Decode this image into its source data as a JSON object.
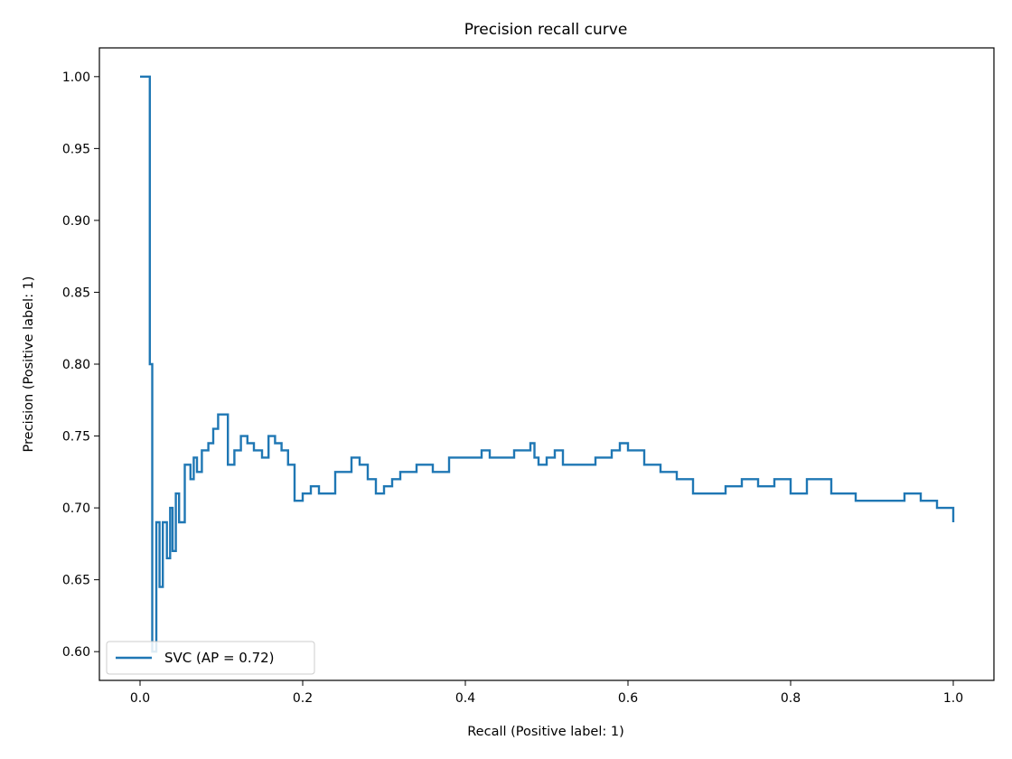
{
  "chart_data": {
    "type": "line",
    "title": "Precision recall curve",
    "xlabel": "Recall (Positive label: 1)",
    "ylabel": "Precision (Positive label: 1)",
    "xlim": [
      -0.05,
      1.05
    ],
    "ylim": [
      0.58,
      1.02
    ],
    "xticks": [
      0.0,
      0.2,
      0.4,
      0.6,
      0.8,
      1.0
    ],
    "xtick_labels": [
      "0.0",
      "0.2",
      "0.4",
      "0.6",
      "0.8",
      "1.0"
    ],
    "yticks": [
      0.6,
      0.65,
      0.7,
      0.75,
      0.8,
      0.85,
      0.9,
      0.95,
      1.0
    ],
    "ytick_labels": [
      "0.60",
      "0.65",
      "0.70",
      "0.75",
      "0.80",
      "0.85",
      "0.90",
      "0.95",
      "1.00"
    ],
    "grid": false,
    "legend": {
      "placement": "lower-left",
      "entries": [
        "SVC (AP = 0.72)"
      ]
    },
    "series": [
      {
        "name": "SVC (AP = 0.72)",
        "color": "#1f77b4",
        "drawstyle": "steps-post",
        "recall": [
          0.0,
          0.012,
          0.012,
          0.015,
          0.02,
          0.024,
          0.028,
          0.033,
          0.037,
          0.04,
          0.044,
          0.048,
          0.055,
          0.062,
          0.066,
          0.07,
          0.076,
          0.084,
          0.09,
          0.096,
          0.101,
          0.108,
          0.116,
          0.124,
          0.132,
          0.14,
          0.15,
          0.158,
          0.166,
          0.174,
          0.182,
          0.19,
          0.2,
          0.21,
          0.22,
          0.24,
          0.26,
          0.27,
          0.28,
          0.29,
          0.3,
          0.31,
          0.32,
          0.34,
          0.36,
          0.38,
          0.4,
          0.42,
          0.43,
          0.44,
          0.46,
          0.48,
          0.485,
          0.49,
          0.5,
          0.51,
          0.52,
          0.54,
          0.56,
          0.58,
          0.59,
          0.6,
          0.62,
          0.64,
          0.66,
          0.68,
          0.7,
          0.72,
          0.74,
          0.76,
          0.78,
          0.8,
          0.82,
          0.84,
          0.85,
          0.86,
          0.88,
          0.9,
          0.92,
          0.94,
          0.96,
          0.98,
          0.99,
          1.0
        ],
        "precision": [
          1.0,
          1.0,
          0.8,
          0.6,
          0.69,
          0.645,
          0.69,
          0.665,
          0.7,
          0.67,
          0.71,
          0.69,
          0.73,
          0.72,
          0.735,
          0.725,
          0.74,
          0.745,
          0.755,
          0.765,
          0.765,
          0.73,
          0.74,
          0.75,
          0.745,
          0.74,
          0.735,
          0.75,
          0.745,
          0.74,
          0.73,
          0.705,
          0.71,
          0.715,
          0.71,
          0.725,
          0.735,
          0.73,
          0.72,
          0.71,
          0.715,
          0.72,
          0.725,
          0.73,
          0.725,
          0.735,
          0.735,
          0.74,
          0.735,
          0.735,
          0.74,
          0.745,
          0.735,
          0.73,
          0.735,
          0.74,
          0.73,
          0.73,
          0.735,
          0.74,
          0.745,
          0.74,
          0.73,
          0.725,
          0.72,
          0.71,
          0.71,
          0.715,
          0.72,
          0.715,
          0.72,
          0.71,
          0.72,
          0.72,
          0.71,
          0.71,
          0.705,
          0.705,
          0.705,
          0.71,
          0.705,
          0.7,
          0.7,
          0.69
        ]
      }
    ]
  }
}
